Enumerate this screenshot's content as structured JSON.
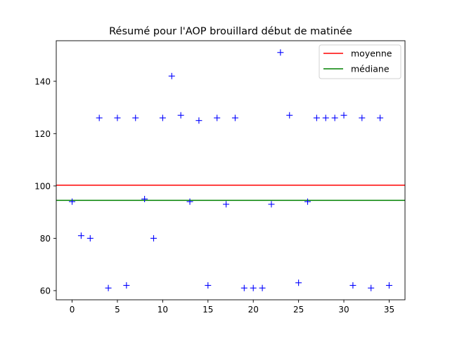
{
  "chart_data": {
    "type": "scatter",
    "title": "Résumé pour l'AOP brouillard début de matinée",
    "xlabel": "",
    "ylabel": "",
    "xlim": [
      -1.75,
      36.75
    ],
    "ylim": [
      56.5,
      155.5
    ],
    "xticks": [
      0,
      5,
      10,
      15,
      20,
      25,
      30,
      35
    ],
    "yticks": [
      60,
      80,
      100,
      120,
      140
    ],
    "grid": false,
    "legend_position": "top-right",
    "series": [
      {
        "kind": "points",
        "marker": "+",
        "color": "#0000ff",
        "x": [
          0,
          1,
          2,
          3,
          4,
          5,
          6,
          7,
          8,
          9,
          10,
          11,
          12,
          13,
          14,
          15,
          16,
          17,
          18,
          19,
          20,
          21,
          22,
          23,
          24,
          25,
          26,
          27,
          28,
          29,
          30,
          31,
          32,
          33,
          34,
          35
        ],
        "y": [
          94,
          81,
          80,
          126,
          61,
          126,
          62,
          126,
          95,
          80,
          126,
          142,
          127,
          94,
          125,
          62,
          126,
          93,
          126,
          61,
          61,
          61,
          93,
          151,
          127,
          63,
          94,
          126,
          126,
          126,
          127,
          62,
          126,
          61,
          126,
          62
        ]
      },
      {
        "kind": "hline",
        "name": "moyenne",
        "color": "#ff0000",
        "y": 100.3
      },
      {
        "kind": "hline",
        "name": "médiane",
        "color": "#008000",
        "y": 94.5
      }
    ]
  }
}
